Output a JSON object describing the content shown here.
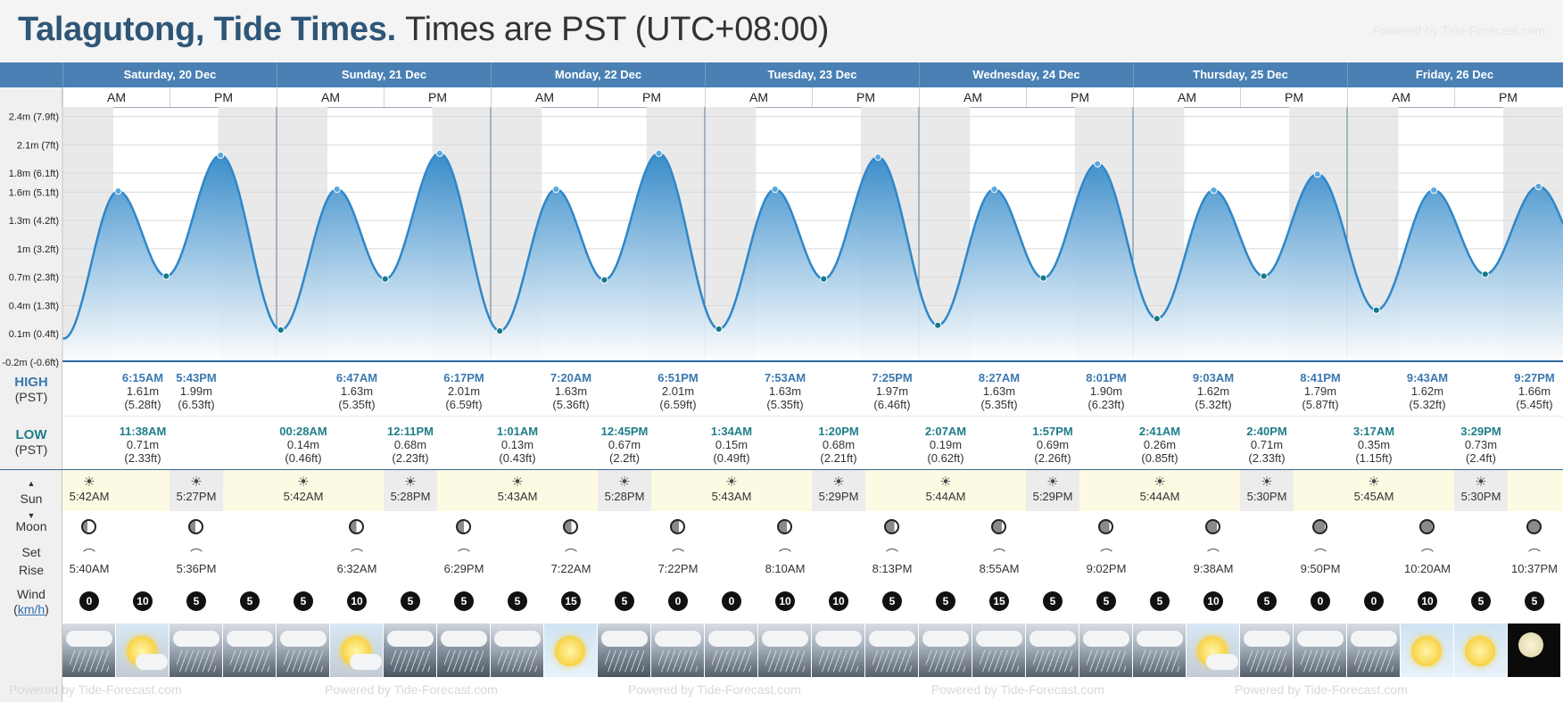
{
  "header": {
    "location_title": "Talagutong, Tide Times.",
    "timezone_note": "Times are PST (UTC+08:00)",
    "powered_by": "Powered by Tide-Forecast.com",
    "footer_watermark": "Powered by Tide-Forecast.com"
  },
  "labels": {
    "am": "AM",
    "pm": "PM",
    "high": "HIGH",
    "high_tz": "(PST)",
    "low": "LOW",
    "low_tz": "(PST)",
    "sun": "Sun",
    "moon": "Moon",
    "set": "Set",
    "rise": "Rise",
    "wind": "Wind",
    "wind_unit": "km/h"
  },
  "days": [
    "Saturday, 20 Dec",
    "Sunday, 21 Dec",
    "Monday, 22 Dec",
    "Tuesday, 23 Dec",
    "Wednesday, 24 Dec",
    "Thursday, 25 Dec",
    "Friday, 26 Dec"
  ],
  "colors": {
    "accent": "#4a80b4",
    "tide_line": "#2f87c8",
    "tide_fill_top": "#2f87c8",
    "high_text": "#3b78b0",
    "low_text": "#1e7d8a",
    "sun_bg": "#fdfae3"
  },
  "chart_data": {
    "type": "area",
    "title": "",
    "xlabel": "",
    "ylabel": "",
    "x_unit": "hours from 00:00 Sat 20 Dec (PST)",
    "ylim": [
      -0.2,
      2.5
    ],
    "yticks": [
      {
        "value": 2.4,
        "label": "2.4m (7.9ft)"
      },
      {
        "value": 2.1,
        "label": "2.1m (7ft)"
      },
      {
        "value": 1.8,
        "label": "1.8m (6.1ft)"
      },
      {
        "value": 1.6,
        "label": "1.6m (5.1ft)"
      },
      {
        "value": 1.3,
        "label": "1.3m (4.2ft)"
      },
      {
        "value": 1.0,
        "label": "1m (3.2ft)"
      },
      {
        "value": 0.7,
        "label": "0.7m (2.3ft)"
      },
      {
        "value": 0.4,
        "label": "0.4m (1.3ft)"
      },
      {
        "value": 0.1,
        "label": "0.1m (0.4ft)"
      },
      {
        "value": -0.2,
        "label": "-0.2m (-0.6ft)"
      }
    ],
    "extremes": [
      {
        "hour": 6.25,
        "height": 1.61,
        "kind": "high"
      },
      {
        "hour": 11.63,
        "height": 0.71,
        "kind": "low"
      },
      {
        "hour": 17.72,
        "height": 1.99,
        "kind": "high"
      },
      {
        "hour": 24.47,
        "height": 0.14,
        "kind": "low"
      },
      {
        "hour": 30.78,
        "height": 1.63,
        "kind": "high"
      },
      {
        "hour": 36.18,
        "height": 0.68,
        "kind": "low"
      },
      {
        "hour": 42.28,
        "height": 2.01,
        "kind": "high"
      },
      {
        "hour": 49.02,
        "height": 0.13,
        "kind": "low"
      },
      {
        "hour": 55.33,
        "height": 1.63,
        "kind": "high"
      },
      {
        "hour": 60.75,
        "height": 0.67,
        "kind": "low"
      },
      {
        "hour": 66.85,
        "height": 2.01,
        "kind": "high"
      },
      {
        "hour": 73.57,
        "height": 0.15,
        "kind": "low"
      },
      {
        "hour": 79.88,
        "height": 1.63,
        "kind": "high"
      },
      {
        "hour": 85.33,
        "height": 0.68,
        "kind": "low"
      },
      {
        "hour": 91.42,
        "height": 1.97,
        "kind": "high"
      },
      {
        "hour": 98.12,
        "height": 0.19,
        "kind": "low"
      },
      {
        "hour": 104.45,
        "height": 1.63,
        "kind": "high"
      },
      {
        "hour": 109.95,
        "height": 0.69,
        "kind": "low"
      },
      {
        "hour": 116.02,
        "height": 1.9,
        "kind": "high"
      },
      {
        "hour": 122.68,
        "height": 0.26,
        "kind": "low"
      },
      {
        "hour": 129.05,
        "height": 1.62,
        "kind": "high"
      },
      {
        "hour": 134.67,
        "height": 0.71,
        "kind": "low"
      },
      {
        "hour": 140.68,
        "height": 1.79,
        "kind": "high"
      },
      {
        "hour": 147.28,
        "height": 0.35,
        "kind": "low"
      },
      {
        "hour": 153.72,
        "height": 1.62,
        "kind": "high"
      },
      {
        "hour": 159.48,
        "height": 0.73,
        "kind": "low"
      },
      {
        "hour": 165.45,
        "height": 1.66,
        "kind": "high"
      }
    ],
    "daylight": [
      {
        "rise": 5.7,
        "set": 17.45
      },
      {
        "rise": 29.7,
        "set": 41.47
      },
      {
        "rise": 53.72,
        "set": 65.47
      },
      {
        "rise": 77.72,
        "set": 89.48
      },
      {
        "rise": 101.73,
        "set": 113.48
      },
      {
        "rise": 125.73,
        "set": 137.5
      },
      {
        "rise": 149.75,
        "set": 161.5
      }
    ]
  },
  "high_tides": [
    [
      {
        "time": "6:15AM",
        "m": "1.61m",
        "ft": "(5.28ft)"
      },
      {
        "time": "5:43PM",
        "m": "1.99m",
        "ft": "(6.53ft)"
      }
    ],
    [
      {
        "time": "6:47AM",
        "m": "1.63m",
        "ft": "(5.35ft)"
      },
      {
        "time": "6:17PM",
        "m": "2.01m",
        "ft": "(6.59ft)"
      }
    ],
    [
      {
        "time": "7:20AM",
        "m": "1.63m",
        "ft": "(5.36ft)"
      },
      {
        "time": "6:51PM",
        "m": "2.01m",
        "ft": "(6.59ft)"
      }
    ],
    [
      {
        "time": "7:53AM",
        "m": "1.63m",
        "ft": "(5.35ft)"
      },
      {
        "time": "7:25PM",
        "m": "1.97m",
        "ft": "(6.46ft)"
      }
    ],
    [
      {
        "time": "8:27AM",
        "m": "1.63m",
        "ft": "(5.35ft)"
      },
      {
        "time": "8:01PM",
        "m": "1.90m",
        "ft": "(6.23ft)"
      }
    ],
    [
      {
        "time": "9:03AM",
        "m": "1.62m",
        "ft": "(5.32ft)"
      },
      {
        "time": "8:41PM",
        "m": "1.79m",
        "ft": "(5.87ft)"
      }
    ],
    [
      {
        "time": "9:43AM",
        "m": "1.62m",
        "ft": "(5.32ft)"
      },
      {
        "time": "9:27PM",
        "m": "1.66m",
        "ft": "(5.45ft)"
      }
    ]
  ],
  "low_tides": [
    [
      {
        "time": "11:38AM",
        "m": "0.71m",
        "ft": "(2.33ft)"
      }
    ],
    [
      {
        "time": "00:28AM",
        "m": "0.14m",
        "ft": "(0.46ft)"
      },
      {
        "time": "12:11PM",
        "m": "0.68m",
        "ft": "(2.23ft)"
      }
    ],
    [
      {
        "time": "1:01AM",
        "m": "0.13m",
        "ft": "(0.43ft)"
      },
      {
        "time": "12:45PM",
        "m": "0.67m",
        "ft": "(2.2ft)"
      }
    ],
    [
      {
        "time": "1:34AM",
        "m": "0.15m",
        "ft": "(0.49ft)"
      },
      {
        "time": "1:20PM",
        "m": "0.68m",
        "ft": "(2.21ft)"
      }
    ],
    [
      {
        "time": "2:07AM",
        "m": "0.19m",
        "ft": "(0.62ft)"
      },
      {
        "time": "1:57PM",
        "m": "0.69m",
        "ft": "(2.26ft)"
      }
    ],
    [
      {
        "time": "2:41AM",
        "m": "0.26m",
        "ft": "(0.85ft)"
      },
      {
        "time": "2:40PM",
        "m": "0.71m",
        "ft": "(2.33ft)"
      }
    ],
    [
      {
        "time": "3:17AM",
        "m": "0.35m",
        "ft": "(1.15ft)"
      },
      {
        "time": "3:29PM",
        "m": "0.73m",
        "ft": "(2.4ft)"
      }
    ]
  ],
  "sun": [
    {
      "rise": "5:42AM",
      "set": "5:27PM"
    },
    {
      "rise": "5:42AM",
      "set": "5:28PM"
    },
    {
      "rise": "5:43AM",
      "set": "5:28PM"
    },
    {
      "rise": "5:43AM",
      "set": "5:29PM"
    },
    {
      "rise": "5:44AM",
      "set": "5:29PM"
    },
    {
      "rise": "5:44AM",
      "set": "5:30PM"
    },
    {
      "rise": "5:45AM",
      "set": "5:30PM"
    }
  ],
  "moon_times": [
    {
      "slot": 0,
      "time": "5:40AM"
    },
    {
      "slot": 2,
      "time": "5:36PM"
    },
    {
      "slot": 5,
      "time": "6:32AM"
    },
    {
      "slot": 7,
      "time": "6:29PM"
    },
    {
      "slot": 9,
      "time": "7:22AM"
    },
    {
      "slot": 11,
      "time": "7:22PM"
    },
    {
      "slot": 13,
      "time": "8:10AM"
    },
    {
      "slot": 15,
      "time": "8:13PM"
    },
    {
      "slot": 17,
      "time": "8:55AM"
    },
    {
      "slot": 19,
      "time": "9:02PM"
    },
    {
      "slot": 21,
      "time": "9:38AM"
    },
    {
      "slot": 23,
      "time": "9:50PM"
    },
    {
      "slot": 25,
      "time": "10:20AM"
    },
    {
      "slot": 27,
      "time": "10:37PM"
    }
  ],
  "wind": [
    0,
    10,
    5,
    5,
    5,
    10,
    5,
    5,
    5,
    15,
    5,
    0,
    0,
    10,
    10,
    5,
    5,
    15,
    5,
    5,
    5,
    10,
    5,
    0,
    0,
    10,
    5,
    5
  ],
  "weather": [
    "rain",
    "partly",
    "rain",
    "rain",
    "rain",
    "partly",
    "storm",
    "storm",
    "rain",
    "sunny",
    "storm",
    "rain",
    "rain",
    "rain",
    "rain",
    "rain",
    "rain",
    "rain",
    "rain",
    "rain",
    "rain",
    "partly",
    "rain",
    "rain",
    "rain",
    "sunny",
    "sunny",
    "night"
  ]
}
